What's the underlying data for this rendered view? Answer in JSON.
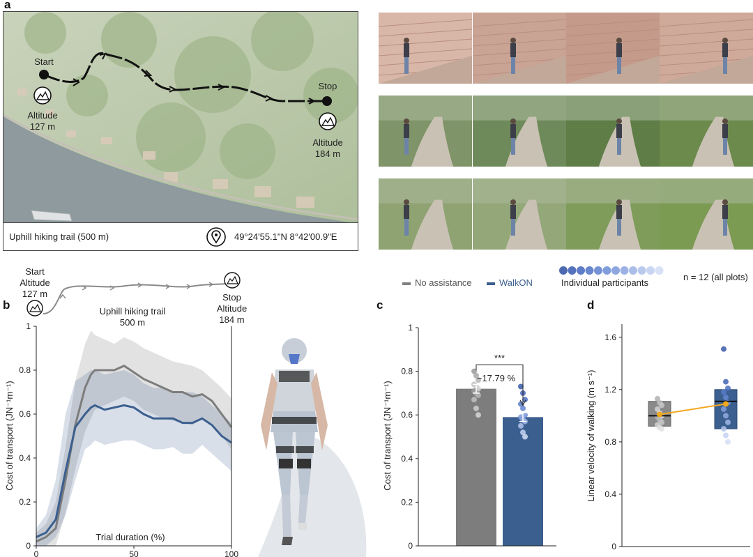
{
  "panel_letters": {
    "a": "a",
    "b": "b",
    "c": "c",
    "d": "d"
  },
  "map": {
    "start_label": "Start",
    "start_altitude_1": "Altitude",
    "start_altitude_2": "127 m",
    "stop_label": "Stop",
    "stop_altitude_1": "Altitude",
    "stop_altitude_2": "184 m",
    "footer_left": "Uphill hiking trail (500 m)",
    "footer_right": "49°24'55.1\"N 8°42'00.9\"E",
    "pin_icon": "map-pin-icon",
    "mountain_icon": "mountain-icon"
  },
  "photos": {
    "rows": 3,
    "cols": 4,
    "colors": [
      [
        "#d8b7a8",
        "#c9a394",
        "#c49a8a",
        "#cfa99a"
      ],
      [
        "#7f9468",
        "#6f8a5a",
        "#5e7d47",
        "#6c8a4c"
      ],
      [
        "#8fa272",
        "#93a779",
        "#7f9c5a",
        "#7b9a52"
      ]
    ]
  },
  "legend": {
    "no_assistance": "No assistance",
    "walkon": "WalkON",
    "individual": "Individual participants",
    "n_note": "n = 12 (all plots)",
    "colors": {
      "no_assistance": "#808080",
      "walkon": "#3b5f8f",
      "orange": "#f2a81d"
    },
    "participant_colors": [
      "#3a5aa8",
      "#4364b5",
      "#4c6ec1",
      "#587ac9",
      "#6586d0",
      "#7392d6",
      "#829edc",
      "#91aae2",
      "#a1b7e8",
      "#b2c4ed",
      "#c3d1f2",
      "#d5def6"
    ]
  },
  "panel_b_header": {
    "start": "Start",
    "altitude_start_1": "Altitude",
    "altitude_start_2": "127 m",
    "trail_1": "Uphill hiking trail",
    "trail_2": "500 m",
    "stop": "Stop",
    "altitude_stop_1": "Altitude",
    "altitude_stop_2": "184 m"
  },
  "chart_data": [
    {
      "id": "b",
      "type": "line",
      "ylabel": "Cost of transport (JN⁻¹m⁻¹)",
      "xlabel": "Trial duration (%)",
      "xlim": [
        0,
        100
      ],
      "ylim": [
        0,
        1
      ],
      "xticks": [
        0,
        50,
        100
      ],
      "yticks": [
        0,
        0.2,
        0.4,
        0.6,
        0.8,
        1
      ],
      "ytick_labels": [
        "0",
        "0.2",
        "0.4",
        "0.6",
        "0.8",
        "1"
      ],
      "x": [
        0,
        5,
        10,
        15,
        20,
        25,
        28,
        30,
        35,
        40,
        45,
        50,
        55,
        60,
        65,
        70,
        75,
        80,
        85,
        90,
        95,
        100
      ],
      "series": [
        {
          "name": "No assistance",
          "color": "#7d7d7d",
          "values": [
            0.02,
            0.04,
            0.08,
            0.3,
            0.55,
            0.72,
            0.78,
            0.8,
            0.8,
            0.8,
            0.82,
            0.79,
            0.76,
            0.74,
            0.72,
            0.7,
            0.7,
            0.68,
            0.69,
            0.66,
            0.6,
            0.54
          ],
          "band_upper": [
            0.06,
            0.1,
            0.2,
            0.45,
            0.75,
            0.92,
            0.98,
            0.96,
            0.94,
            0.92,
            0.95,
            0.93,
            0.9,
            0.88,
            0.86,
            0.84,
            0.83,
            0.82,
            0.8,
            0.76,
            0.72,
            0.67
          ],
          "band_lower": [
            0.0,
            0.0,
            0.0,
            0.15,
            0.35,
            0.52,
            0.58,
            0.62,
            0.64,
            0.66,
            0.68,
            0.66,
            0.62,
            0.6,
            0.58,
            0.57,
            0.56,
            0.55,
            0.58,
            0.55,
            0.5,
            0.44
          ]
        },
        {
          "name": "WalkON",
          "color": "#3b5f8f",
          "values": [
            0.04,
            0.06,
            0.12,
            0.34,
            0.54,
            0.6,
            0.63,
            0.64,
            0.62,
            0.63,
            0.64,
            0.63,
            0.6,
            0.58,
            0.58,
            0.58,
            0.56,
            0.56,
            0.58,
            0.55,
            0.5,
            0.47
          ],
          "band_upper": [
            0.08,
            0.14,
            0.3,
            0.6,
            0.75,
            0.78,
            0.8,
            0.8,
            0.78,
            0.79,
            0.8,
            0.78,
            0.74,
            0.72,
            0.72,
            0.7,
            0.7,
            0.7,
            0.68,
            0.64,
            0.6,
            0.56
          ],
          "band_lower": [
            0.0,
            0.0,
            0.04,
            0.14,
            0.3,
            0.44,
            0.46,
            0.48,
            0.46,
            0.47,
            0.48,
            0.48,
            0.46,
            0.44,
            0.44,
            0.45,
            0.42,
            0.42,
            0.46,
            0.42,
            0.38,
            0.34
          ]
        }
      ]
    },
    {
      "id": "c",
      "type": "bar",
      "ylabel": "Cost of transport (JN⁻¹m⁻¹)",
      "ylim": [
        0,
        1
      ],
      "yticks": [
        0,
        0.2,
        0.4,
        0.6,
        0.8,
        1
      ],
      "ytick_labels": [
        "0",
        "0.2",
        "0.4",
        "0.6",
        "0.8",
        "1"
      ],
      "categories": [
        "No assistance",
        "WalkON"
      ],
      "values": [
        0.72,
        0.59
      ],
      "errors": [
        0.02,
        0.02
      ],
      "colors": [
        "#7d7d7d",
        "#3b5f8f"
      ],
      "points": [
        [
          0.8,
          0.78,
          0.76,
          0.74,
          0.73,
          0.72,
          0.71,
          0.7,
          0.69,
          0.67,
          0.63,
          0.6
        ],
        [
          0.73,
          0.7,
          0.67,
          0.65,
          0.63,
          0.6,
          0.59,
          0.58,
          0.57,
          0.55,
          0.52,
          0.5
        ]
      ],
      "significance": "***",
      "change_label": "−17.79 %"
    },
    {
      "id": "d",
      "type": "box",
      "ylabel": "Linear velocity of walking (m s⁻¹)",
      "ylim": [
        0,
        1.7
      ],
      "yticks": [
        0,
        0.4,
        0.8,
        1.2,
        1.6
      ],
      "ytick_labels": [
        "0",
        "0.4",
        "0.8",
        "1.2",
        "1.6"
      ],
      "categories": [
        "No assistance",
        "WalkON"
      ],
      "boxes": [
        {
          "q1": 0.92,
          "median": 1.0,
          "q3": 1.11,
          "mean": 1.01
        },
        {
          "q1": 0.9,
          "median": 1.11,
          "q3": 1.2,
          "mean": 1.09
        }
      ],
      "points": [
        [
          1.13,
          1.1,
          1.08,
          1.05,
          1.02,
          1.0,
          0.99,
          0.97,
          0.95,
          0.93,
          0.91,
          0.9
        ],
        [
          1.51,
          1.26,
          1.21,
          1.18,
          1.14,
          1.1,
          1.05,
          1.0,
          0.95,
          0.9,
          0.85,
          0.8
        ]
      ]
    }
  ]
}
